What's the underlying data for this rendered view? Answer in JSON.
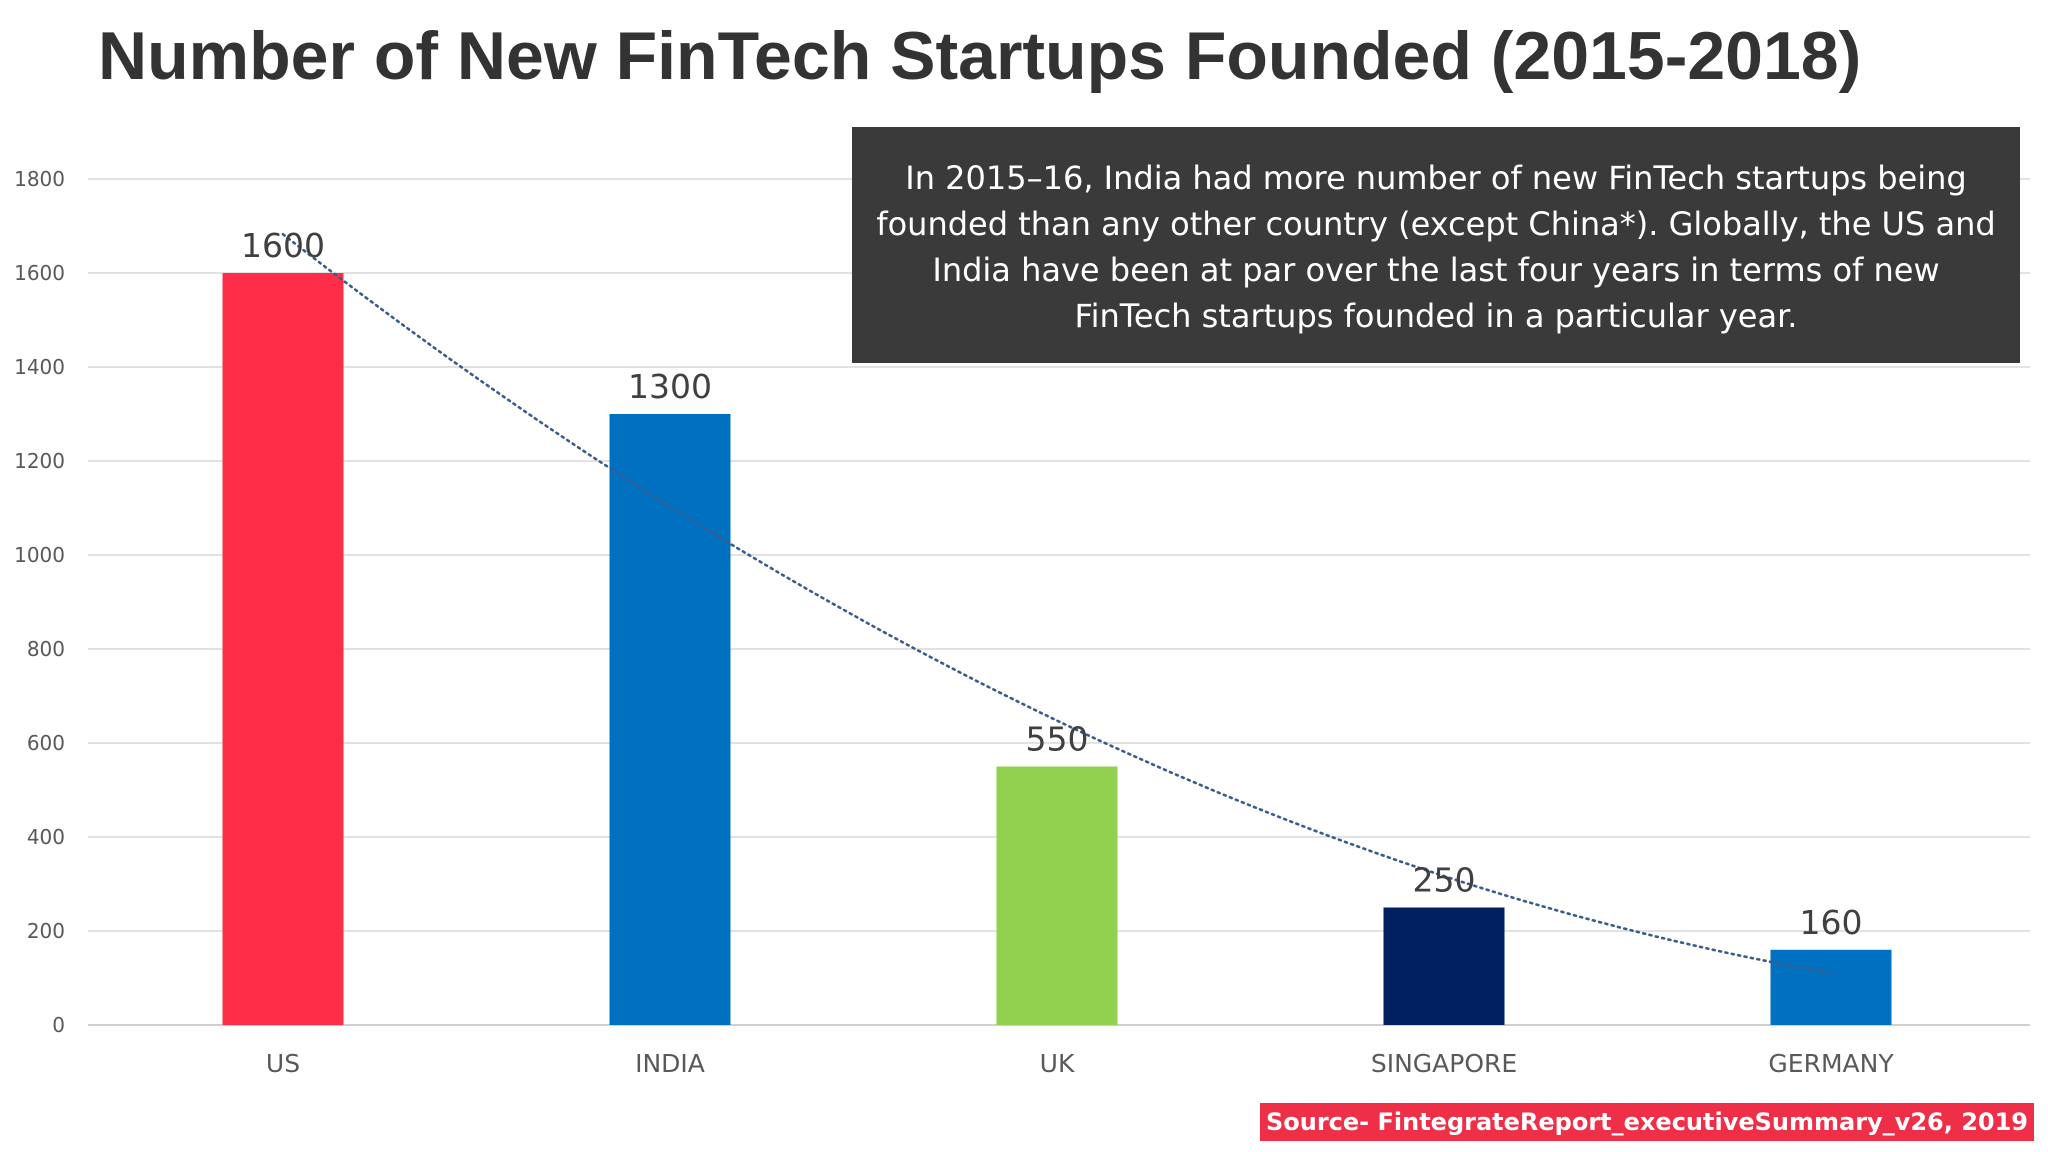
{
  "title": "Number of New FinTech Startups Founded (2015-2018)",
  "annotation": "In 2015–16, India had more number of new FinTech startups being founded than any other country (except China*). Globally, the US and India have been at par over the last four years in terms of new FinTech startups founded in a particular year.",
  "source": "Source- FintegrateReport_executiveSummary_v26, 2019",
  "chart_data": {
    "type": "bar",
    "title": "Number of New FinTech Startups Founded (2015-2018)",
    "xlabel": "",
    "ylabel": "",
    "categories": [
      "US",
      "INDIA",
      "UK",
      "SINGAPORE",
      "GERMANY"
    ],
    "values": [
      1600,
      1300,
      550,
      250,
      160
    ],
    "bar_colors": [
      "#ff2d48",
      "#0070c0",
      "#92d050",
      "#002060",
      "#0070c0"
    ],
    "data_labels": [
      "1600",
      "1300",
      "550",
      "250",
      "160"
    ],
    "ylim": [
      0,
      1800
    ],
    "yticks": [
      0,
      200,
      400,
      600,
      800,
      1000,
      1200,
      1400,
      1600,
      1800
    ],
    "grid": true,
    "legend": "none",
    "trendline": {
      "type": "polynomial",
      "style": "dotted",
      "color": "#3a5c8c"
    }
  }
}
